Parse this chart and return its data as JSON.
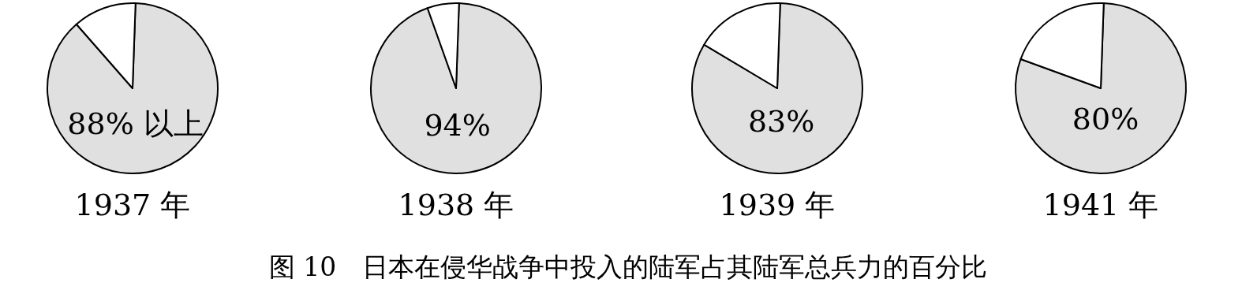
{
  "chart_data": [
    {
      "type": "pie",
      "title": "1937 年",
      "categories": [
        null,
        null
      ],
      "values": [
        88,
        12
      ],
      "colors": [
        "#e0e0e0",
        "#ffffff"
      ],
      "value_labels": [
        "88% 以上",
        null
      ]
    },
    {
      "type": "pie",
      "title": "1938 年",
      "categories": [
        null,
        null
      ],
      "values": [
        94,
        6
      ],
      "colors": [
        "#e0e0e0",
        "#ffffff"
      ],
      "value_labels": [
        "94%",
        null
      ]
    },
    {
      "type": "pie",
      "title": "1939 年",
      "categories": [
        null,
        null
      ],
      "values": [
        83,
        17
      ],
      "colors": [
        "#e0e0e0",
        "#ffffff"
      ],
      "value_labels": [
        "83%",
        null
      ]
    },
    {
      "type": "pie",
      "title": "1941 年",
      "categories": [
        null,
        null
      ],
      "values": [
        80,
        20
      ],
      "colors": [
        "#e0e0e0",
        "#ffffff"
      ],
      "value_labels": [
        "80%",
        null
      ],
      "annotations": [
        "图 10　日本在侵华战争中投入的陆军占其陆军总兵力的百分比"
      ]
    }
  ]
}
